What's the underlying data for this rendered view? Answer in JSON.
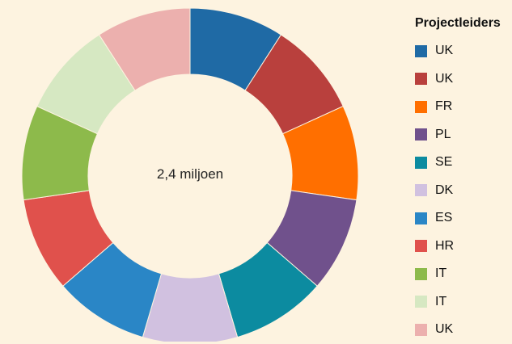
{
  "chart_data": {
    "type": "pie",
    "donut": true,
    "center_label": "2,4 miljoen",
    "legend_title": "Projectleiders",
    "legend_position": "right",
    "slices": [
      {
        "label": "UK",
        "value": 1,
        "color": "#1f6aa5"
      },
      {
        "label": "UK",
        "value": 1,
        "color": "#b9403d"
      },
      {
        "label": "FR",
        "value": 1,
        "color": "#ff6f00"
      },
      {
        "label": "PL",
        "value": 1,
        "color": "#70518c"
      },
      {
        "label": "SE",
        "value": 1,
        "color": "#0c8ba0"
      },
      {
        "label": "DK",
        "value": 1,
        "color": "#d1c1e0"
      },
      {
        "label": "ES",
        "value": 1,
        "color": "#2a86c6"
      },
      {
        "label": "HR",
        "value": 1,
        "color": "#e0514c"
      },
      {
        "label": "IT",
        "value": 1,
        "color": "#8dba4b"
      },
      {
        "label": "IT",
        "value": 1,
        "color": "#d6e8c2"
      },
      {
        "label": "UK",
        "value": 1,
        "color": "#ecb0ae"
      }
    ]
  }
}
